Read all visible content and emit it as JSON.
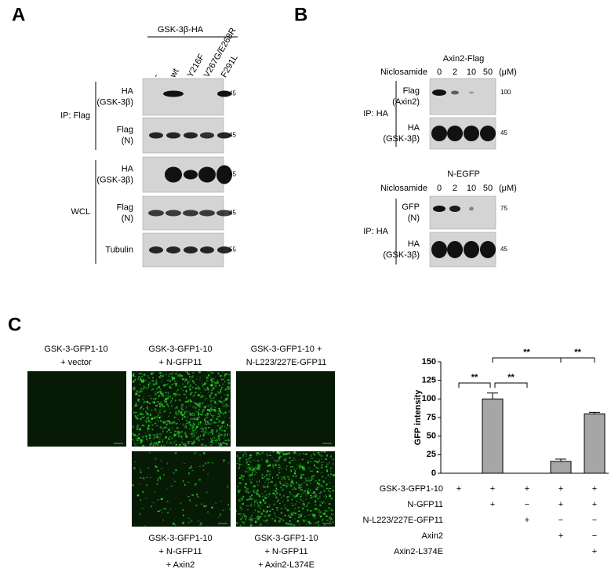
{
  "panel_a": {
    "label": "A",
    "group": "GSK-3β-HA",
    "lanes": [
      "-",
      "wt",
      "Y216F",
      "V267G/E268R",
      "F291L"
    ],
    "sections": [
      {
        "label": "IP: Flag",
        "rows": [
          {
            "label": [
              "HA",
              "(GSK-3β)"
            ],
            "mw": "45"
          },
          {
            "label": [
              "Flag",
              "(N)"
            ],
            "mw": "45"
          }
        ]
      },
      {
        "label": "WCL",
        "rows": [
          {
            "label": [
              "HA",
              "(GSK-3β)"
            ],
            "mw": "45"
          },
          {
            "label": [
              "Flag",
              "(N)"
            ],
            "mw": "45"
          },
          {
            "label": [
              "Tubulin"
            ],
            "mw": "55"
          }
        ]
      }
    ]
  },
  "panel_b": {
    "label": "B",
    "blots": [
      {
        "title": "Axin2-Flag",
        "treatment": "Niclosamide",
        "doses": [
          "0",
          "2",
          "10",
          "50"
        ],
        "unit": "(μM)",
        "ip": "IP: HA",
        "rows": [
          {
            "label": [
              "Flag",
              "(Axin2)"
            ],
            "mw": "100"
          },
          {
            "label": [
              "HA",
              "(GSK-3β)"
            ],
            "mw": "45"
          }
        ]
      },
      {
        "title": "N-EGFP",
        "treatment": "Niclosamide",
        "doses": [
          "0",
          "2",
          "10",
          "50"
        ],
        "unit": "(μM)",
        "ip": "IP: HA",
        "rows": [
          {
            "label": [
              "GFP",
              "(N)"
            ],
            "mw": "75"
          },
          {
            "label": [
              "HA",
              "(GSK-3β)"
            ],
            "mw": "45"
          }
        ]
      }
    ]
  },
  "panel_c": {
    "label": "C",
    "images": [
      {
        "caption": [
          "GSK-3-GFP1-10",
          "+ vector"
        ]
      },
      {
        "caption": [
          "GSK-3-GFP1-10",
          "+ N-GFP11"
        ]
      },
      {
        "caption": [
          "GSK-3-GFP1-10 +",
          "N-L223/227E-GFP11"
        ]
      },
      {
        "caption": [
          "GSK-3-GFP1-10",
          "+ N-GFP11",
          "+ Axin2"
        ]
      },
      {
        "caption": [
          "GSK-3-GFP1-10",
          "+ N-GFP11",
          "+ Axin2-L374E"
        ]
      }
    ]
  },
  "chart_data": {
    "type": "bar",
    "ylabel": "GFP intensity",
    "categories": [
      null,
      null,
      null,
      null,
      null
    ],
    "values": [
      0,
      100,
      0,
      16,
      80
    ],
    "errors": [
      null,
      8,
      null,
      3,
      2
    ],
    "color": "#a6a6a6",
    "ylim": [
      0,
      150
    ],
    "yticks": [
      0,
      25,
      50,
      75,
      100,
      125,
      150
    ],
    "conditions": [
      {
        "name": "GSK-3-GFP1-10",
        "marks": [
          "+",
          "+",
          "+",
          "+",
          "+"
        ]
      },
      {
        "name": "N-GFP11",
        "marks": [
          null,
          "+",
          "−",
          "+",
          "+"
        ]
      },
      {
        "name": "N-L223/227E-GFP11",
        "marks": [
          null,
          null,
          "+",
          "−",
          "−"
        ]
      },
      {
        "name": "Axin2",
        "marks": [
          null,
          null,
          null,
          "+",
          "−"
        ]
      },
      {
        "name": "Axin2-L374E",
        "marks": [
          null,
          null,
          null,
          null,
          "+"
        ]
      }
    ],
    "significance": [
      {
        "label": "**",
        "from": 0,
        "to": 1
      },
      {
        "label": "**",
        "from": 1,
        "to": 2
      },
      {
        "label": "**",
        "from": 1,
        "to": 3
      },
      {
        "label": "**",
        "from": 3,
        "to": 4
      }
    ]
  }
}
